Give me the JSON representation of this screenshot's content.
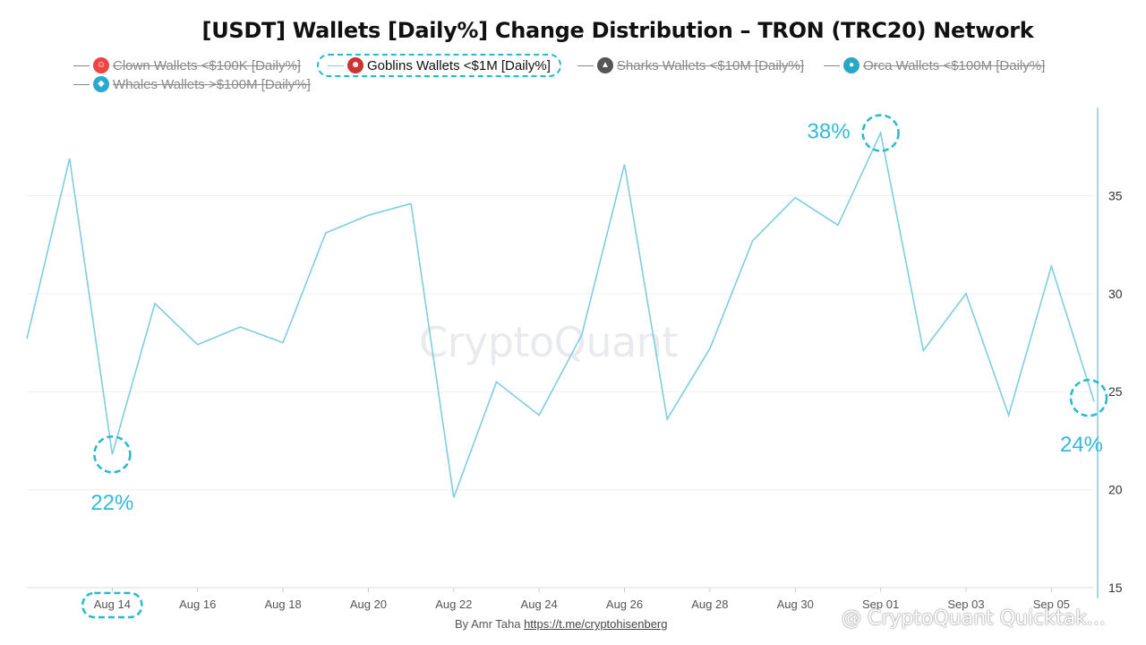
{
  "title": "[USDT] Wallets [Daily%] Change Distribution – TRON (TRC20) Network",
  "legend": [
    {
      "label": "Clown Wallets <$100K [Daily%]",
      "icon": "clown-icon",
      "state": "hidden",
      "color": "#e44"
    },
    {
      "label": "Goblins Wallets <$1M [Daily%]",
      "icon": "goblin-icon",
      "state": "active",
      "color": "#c33"
    },
    {
      "label": "Sharks Wallets <$10M [Daily%]",
      "icon": "shark-icon",
      "state": "hidden",
      "color": "#555"
    },
    {
      "label": "Orca Wallets <$100M [Daily%]",
      "icon": "orca-icon",
      "state": "hidden",
      "color": "#2aa7c7"
    },
    {
      "label": "Whales Wallets >$100M [Daily%]",
      "icon": "whale-icon",
      "state": "hidden",
      "color": "#29a9d1"
    }
  ],
  "chart_data": {
    "type": "line",
    "x": [
      "Aug 12",
      "Aug 13",
      "Aug 14",
      "Aug 15",
      "Aug 16",
      "Aug 17",
      "Aug 18",
      "Aug 19",
      "Aug 20",
      "Aug 21",
      "Aug 22",
      "Aug 23",
      "Aug 24",
      "Aug 25",
      "Aug 26",
      "Aug 27",
      "Aug 28",
      "Aug 29",
      "Aug 30",
      "Aug 31",
      "Sep 01",
      "Sep 02",
      "Sep 03",
      "Sep 04",
      "Sep 05",
      "Sep 06"
    ],
    "series": [
      {
        "name": "Goblins Wallets <$1M [Daily%]",
        "color": "#7fcde0",
        "values": [
          27.7,
          36.9,
          21.8,
          29.5,
          27.4,
          28.3,
          27.5,
          33.1,
          34.0,
          34.6,
          19.6,
          25.5,
          23.8,
          27.9,
          36.6,
          23.6,
          27.2,
          32.7,
          34.9,
          33.5,
          38.2,
          27.1,
          30.0,
          23.8,
          31.4,
          24.5
        ]
      }
    ],
    "x_tick_labels": [
      "Aug 14",
      "Aug 16",
      "Aug 18",
      "Aug 20",
      "Aug 22",
      "Aug 24",
      "Aug 26",
      "Aug 28",
      "Aug 30",
      "Sep 01",
      "Sep 03",
      "Sep 05"
    ],
    "y_ticks": [
      15,
      20,
      25,
      30,
      35
    ],
    "ylim": [
      15,
      39.5
    ],
    "grid": true,
    "axis_color": "#7fcde0",
    "annotations": [
      {
        "text": "22%",
        "x": "Aug 14",
        "y": 21.8
      },
      {
        "text": "38%",
        "x": "Sep 01",
        "y": 38.2
      },
      {
        "text": "24%",
        "x": "Sep 06",
        "y": 24.5
      }
    ],
    "highlight_tick": "Aug 14"
  },
  "watermark": "CryptoQuant",
  "credit": {
    "prefix": "By Amr Taha ",
    "link": "https://t.me/cryptohisenberg"
  },
  "quicktake": "@ CryptoQuant Quicktak..."
}
